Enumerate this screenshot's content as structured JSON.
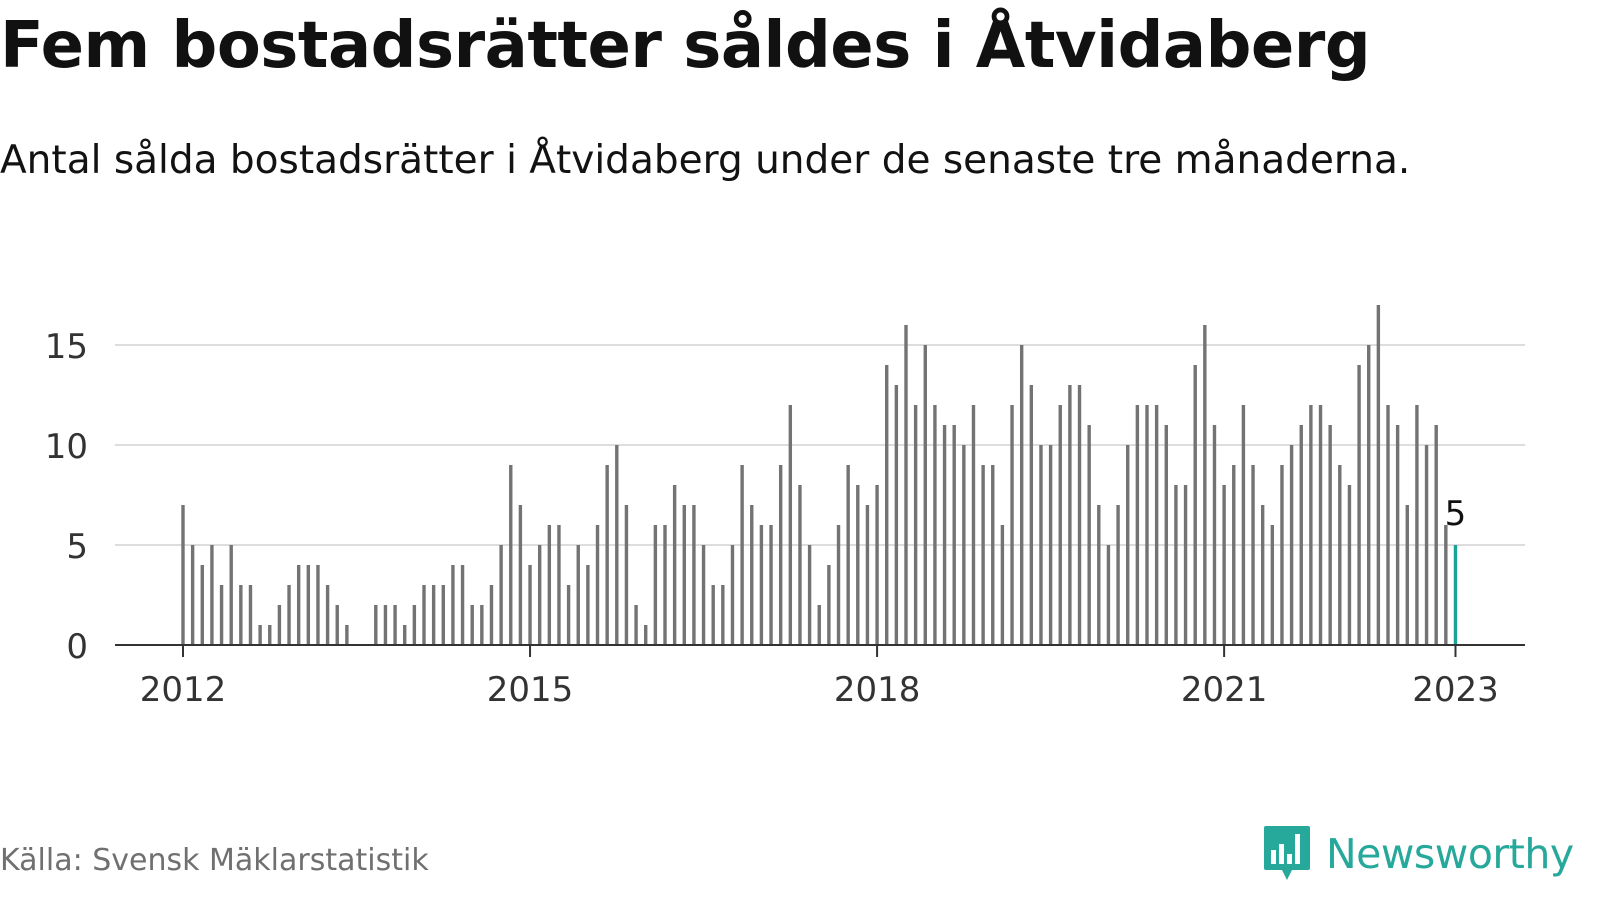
{
  "title": "Fem bostadsrätter såldes i Åtvidaberg",
  "subtitle": "Antal sålda bostadsrätter i Åtvidaberg under de senaste tre månaderna.",
  "source": "Källa: Svensk Mäklarstatistik",
  "brand": {
    "name": "Newsworthy",
    "logo_icon": "newsworthy-chart-bubble-icon"
  },
  "colors": {
    "bar": "#737373",
    "highlight": "#1aa199",
    "grid": "#dddddd",
    "axis": "#333333",
    "brand": "#26a89a"
  },
  "chart_data": {
    "type": "bar",
    "x_start": "2012-01",
    "x_end": "2023-01",
    "x_tick_labels": [
      "2012",
      "2015",
      "2018",
      "2021",
      "2023"
    ],
    "y_tick_labels": [
      "0",
      "5",
      "10",
      "15"
    ],
    "ylim": [
      0,
      17
    ],
    "grid": true,
    "x": [
      "2012-01",
      "2012-02",
      "2012-03",
      "2012-04",
      "2012-05",
      "2012-06",
      "2012-07",
      "2012-08",
      "2012-09",
      "2012-10",
      "2012-11",
      "2012-12",
      "2013-01",
      "2013-02",
      "2013-03",
      "2013-04",
      "2013-05",
      "2013-06",
      "2013-07",
      "2013-08",
      "2013-09",
      "2013-10",
      "2013-11",
      "2013-12",
      "2014-01",
      "2014-02",
      "2014-03",
      "2014-04",
      "2014-05",
      "2014-06",
      "2014-07",
      "2014-08",
      "2014-09",
      "2014-10",
      "2014-11",
      "2014-12",
      "2015-01",
      "2015-02",
      "2015-03",
      "2015-04",
      "2015-05",
      "2015-06",
      "2015-07",
      "2015-08",
      "2015-09",
      "2015-10",
      "2015-11",
      "2015-12",
      "2016-01",
      "2016-02",
      "2016-03",
      "2016-04",
      "2016-05",
      "2016-06",
      "2016-07",
      "2016-08",
      "2016-09",
      "2016-10",
      "2016-11",
      "2016-12",
      "2017-01",
      "2017-02",
      "2017-03",
      "2017-04",
      "2017-05",
      "2017-06",
      "2017-07",
      "2017-08",
      "2017-09",
      "2017-10",
      "2017-11",
      "2017-12",
      "2018-01",
      "2018-02",
      "2018-03",
      "2018-04",
      "2018-05",
      "2018-06",
      "2018-07",
      "2018-08",
      "2018-09",
      "2018-10",
      "2018-11",
      "2018-12",
      "2019-01",
      "2019-02",
      "2019-03",
      "2019-04",
      "2019-05",
      "2019-06",
      "2019-07",
      "2019-08",
      "2019-09",
      "2019-10",
      "2019-11",
      "2019-12",
      "2020-01",
      "2020-02",
      "2020-03",
      "2020-04",
      "2020-05",
      "2020-06",
      "2020-07",
      "2020-08",
      "2020-09",
      "2020-10",
      "2020-11",
      "2020-12",
      "2021-01",
      "2021-02",
      "2021-03",
      "2021-04",
      "2021-05",
      "2021-06",
      "2021-07",
      "2021-08",
      "2021-09",
      "2021-10",
      "2021-11",
      "2021-12",
      "2022-01",
      "2022-02",
      "2022-03",
      "2022-04",
      "2022-05",
      "2022-06",
      "2022-07",
      "2022-08",
      "2022-09",
      "2022-10",
      "2022-11",
      "2022-12",
      "2023-01"
    ],
    "values": [
      7,
      5,
      4,
      5,
      3,
      5,
      3,
      3,
      1,
      1,
      2,
      3,
      4,
      4,
      4,
      3,
      2,
      1,
      null,
      null,
      2,
      2,
      2,
      1,
      2,
      3,
      3,
      3,
      4,
      4,
      2,
      2,
      3,
      5,
      9,
      7,
      4,
      5,
      6,
      6,
      3,
      5,
      4,
      6,
      9,
      10,
      7,
      2,
      1,
      6,
      6,
      8,
      7,
      7,
      5,
      3,
      3,
      5,
      9,
      7,
      6,
      6,
      9,
      12,
      8,
      5,
      2,
      4,
      6,
      9,
      8,
      7,
      8,
      14,
      13,
      16,
      12,
      15,
      12,
      11,
      11,
      10,
      12,
      9,
      9,
      6,
      12,
      15,
      13,
      10,
      10,
      12,
      13,
      13,
      11,
      7,
      5,
      7,
      10,
      12,
      12,
      12,
      11,
      8,
      8,
      14,
      16,
      11,
      8,
      9,
      12,
      9,
      7,
      6,
      9,
      10,
      11,
      12,
      12,
      11,
      9,
      8,
      14,
      15,
      17,
      12,
      11,
      7,
      12,
      10,
      11,
      6,
      5
    ],
    "highlight_label": "5"
  }
}
